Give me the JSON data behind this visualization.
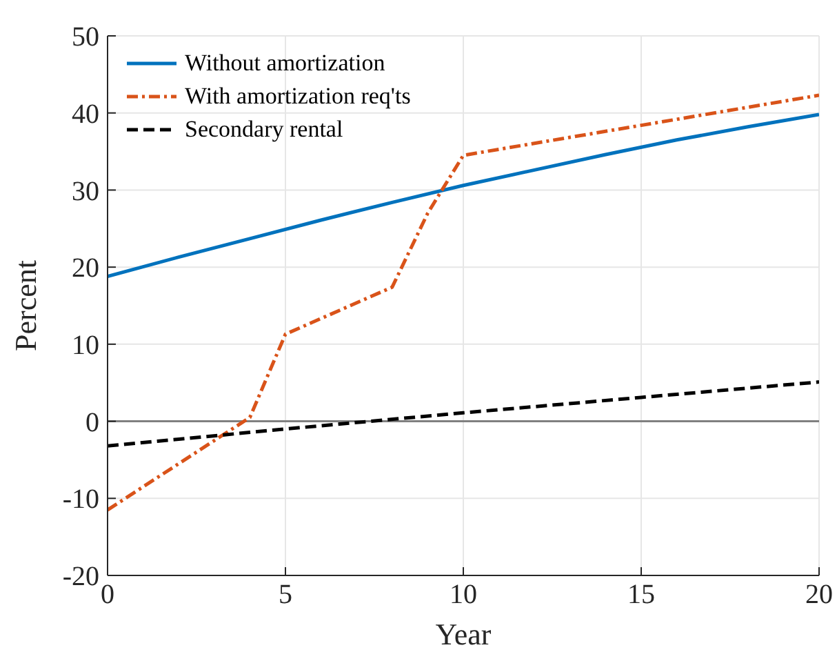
{
  "chart_data": {
    "type": "line",
    "xlabel": "Year",
    "ylabel": "Percent",
    "xlim": [
      0,
      20
    ],
    "xticks": [
      0,
      5,
      10,
      15,
      20
    ],
    "ylim": [
      -20,
      50
    ],
    "yticks": [
      -20,
      -10,
      0,
      10,
      20,
      30,
      40,
      50
    ],
    "grid": true,
    "legend": "top left",
    "marker": "none",
    "ref_lines": [
      {
        "axis": "y",
        "value": 0,
        "color": "#808080",
        "line_style": "solid"
      }
    ],
    "series": [
      {
        "name": "Without amortization",
        "color": "#0072bd",
        "line_style": "solid",
        "x": [
          0,
          2,
          4,
          6,
          8,
          10,
          12,
          14,
          16,
          18,
          20
        ],
        "values": [
          18.8,
          21.3,
          23.7,
          26.1,
          28.4,
          30.6,
          32.6,
          34.6,
          36.5,
          38.2,
          39.8
        ]
      },
      {
        "name": "With amortization req'ts",
        "color": "#d95319",
        "line_style": "dashdot",
        "x": [
          0,
          4,
          5,
          8,
          9,
          10,
          20
        ],
        "values": [
          -11.5,
          0.5,
          11.3,
          17.4,
          27,
          34.5,
          42.3
        ]
      },
      {
        "name": "Secondary rental",
        "color": "#000000",
        "line_style": "dashed",
        "x": [
          0,
          5,
          10,
          15,
          20
        ],
        "values": [
          -3.2,
          -1.0,
          1.1,
          3.1,
          5.1
        ]
      }
    ]
  }
}
